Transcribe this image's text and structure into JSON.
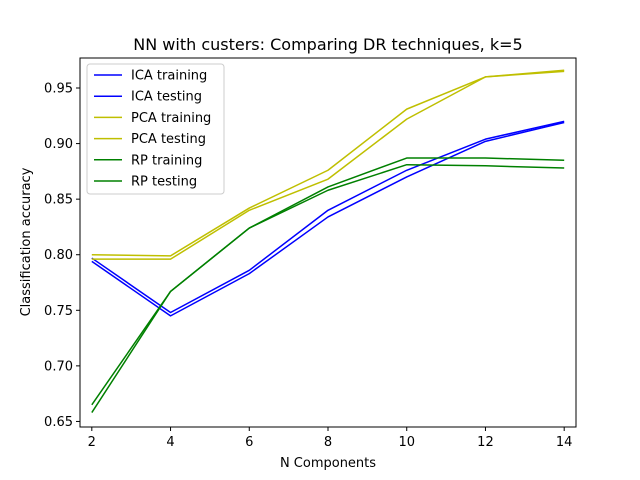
{
  "chart_data": {
    "type": "line",
    "title": "NN with custers: Comparing DR techniques, k=5",
    "xlabel": "N Components",
    "ylabel": "Classification accuracy",
    "x": [
      2,
      4,
      6,
      8,
      10,
      12,
      14
    ],
    "xlim": [
      1.7,
      14.3
    ],
    "ylim": [
      0.645,
      0.977
    ],
    "xticks": [
      "2",
      "4",
      "6",
      "8",
      "10",
      "12",
      "14"
    ],
    "yticks": [
      "0.65",
      "0.70",
      "0.75",
      "0.80",
      "0.85",
      "0.90",
      "0.95"
    ],
    "grid": false,
    "legend_position": "upper-left",
    "series": [
      {
        "name": "ICA training",
        "color": "#0000ff",
        "values": [
          0.797,
          0.748,
          0.786,
          0.84,
          0.876,
          0.904,
          0.92
        ]
      },
      {
        "name": "ICA testing",
        "color": "#0000ff",
        "values": [
          0.794,
          0.745,
          0.783,
          0.834,
          0.87,
          0.902,
          0.919
        ]
      },
      {
        "name": "PCA training",
        "color": "#bfbf00",
        "values": [
          0.8,
          0.799,
          0.842,
          0.876,
          0.931,
          0.96,
          0.966
        ]
      },
      {
        "name": "PCA testing",
        "color": "#bfbf00",
        "values": [
          0.796,
          0.796,
          0.84,
          0.868,
          0.922,
          0.96,
          0.965
        ]
      },
      {
        "name": "RP training",
        "color": "#008000",
        "values": [
          0.665,
          0.767,
          0.824,
          0.861,
          0.887,
          0.887,
          0.885
        ]
      },
      {
        "name": "RP testing",
        "color": "#008000",
        "values": [
          0.658,
          0.767,
          0.824,
          0.858,
          0.881,
          0.88,
          0.878
        ]
      }
    ]
  }
}
